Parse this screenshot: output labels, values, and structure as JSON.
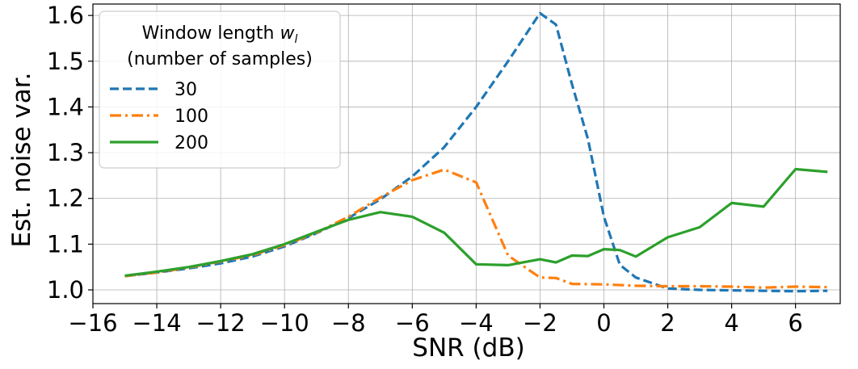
{
  "chart_data": {
    "type": "line",
    "title": "",
    "xlabel": "SNR (dB)",
    "ylabel": "Est. noise var.",
    "xlim": [
      -16,
      7.4
    ],
    "ylim": [
      0.97,
      1.625
    ],
    "xticks": [
      -16,
      -14,
      -12,
      -10,
      -8,
      -6,
      -4,
      -2,
      0,
      2,
      4,
      6
    ],
    "xtick_labels": [
      "−16",
      "−14",
      "−12",
      "−10",
      "−8",
      "−6",
      "−4",
      "−2",
      "0",
      "2",
      "4",
      "6"
    ],
    "yticks": [
      1.0,
      1.1,
      1.2,
      1.3,
      1.4,
      1.5,
      1.6
    ],
    "ytick_labels": [
      "1.0",
      "1.1",
      "1.2",
      "1.3",
      "1.4",
      "1.5",
      "1.6"
    ],
    "grid": true,
    "legend": {
      "title_line1": "Window length",
      "title_var": "w",
      "title_sub": "l",
      "title_line2": "(number of samples)",
      "placement": "top-left"
    },
    "series": [
      {
        "name": "30",
        "color": "#1f77b4",
        "style": "dashed",
        "x": [
          -15,
          -14,
          -13,
          -12,
          -11,
          -10,
          -9,
          -8,
          -7,
          -6,
          -5,
          -4,
          -3,
          -2,
          -1.5,
          -1,
          -0.5,
          0,
          0.5,
          1,
          2,
          3,
          4,
          5,
          6,
          7
        ],
        "y": [
          1.03,
          1.038,
          1.047,
          1.058,
          1.073,
          1.095,
          1.124,
          1.157,
          1.198,
          1.248,
          1.312,
          1.4,
          1.5,
          1.605,
          1.58,
          1.45,
          1.33,
          1.16,
          1.055,
          1.027,
          1.003,
          1.0,
          0.999,
          0.998,
          0.997,
          0.998
        ]
      },
      {
        "name": "100",
        "color": "#ff7f0e",
        "style": "dashdot",
        "x": [
          -15,
          -14,
          -13,
          -12,
          -11,
          -10,
          -9,
          -8,
          -7,
          -6,
          -5,
          -4,
          -3,
          -2,
          -1.5,
          -1,
          0,
          1,
          2,
          3,
          4,
          5,
          6,
          7
        ],
        "y": [
          1.03,
          1.038,
          1.049,
          1.062,
          1.076,
          1.098,
          1.125,
          1.16,
          1.202,
          1.24,
          1.263,
          1.235,
          1.075,
          1.027,
          1.026,
          1.013,
          1.012,
          1.009,
          1.008,
          1.008,
          1.007,
          1.005,
          1.007,
          1.006
        ]
      },
      {
        "name": "200",
        "color": "#2ca02c",
        "style": "solid",
        "x": [
          -15,
          -14,
          -13,
          -12,
          -11,
          -10,
          -9,
          -8,
          -7,
          -6,
          -5,
          -4,
          -3,
          -2,
          -1.5,
          -1,
          -0.5,
          0,
          0.5,
          1,
          2,
          3,
          4,
          5,
          6,
          7
        ],
        "y": [
          1.031,
          1.04,
          1.05,
          1.063,
          1.078,
          1.1,
          1.127,
          1.153,
          1.17,
          1.16,
          1.125,
          1.056,
          1.054,
          1.067,
          1.06,
          1.075,
          1.074,
          1.089,
          1.087,
          1.073,
          1.115,
          1.137,
          1.19,
          1.182,
          1.264,
          1.258
        ]
      }
    ]
  }
}
